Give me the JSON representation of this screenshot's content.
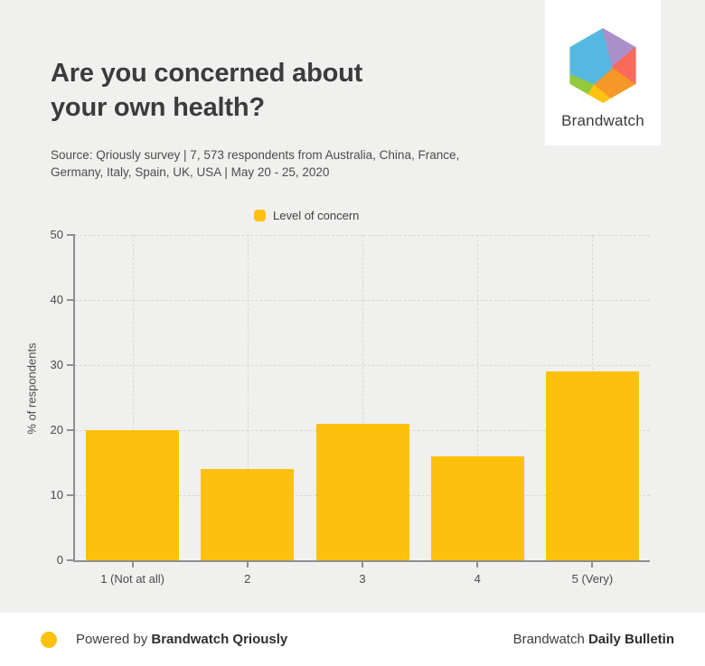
{
  "header": {
    "title_line1": "Are you concerned about",
    "title_line2": "your own health?",
    "source_line1": "Source: Qriously survey | 7, 573 respondents from Australia, China, France,",
    "source_line2": "Germany, Italy, Spain, UK, USA | May 20 - 25, 2020"
  },
  "logo": {
    "brand_name": "Brandwatch",
    "facet_colors": {
      "blue": "#55b8e0",
      "purple": "#ab8fc9",
      "red": "#fa6a5a",
      "orange": "#f79727",
      "yellow": "#fdc30e",
      "green": "#93c93d"
    }
  },
  "legend": {
    "label": "Level of concern",
    "swatch_color": "#fdc10d"
  },
  "chart_data": {
    "type": "bar",
    "title": "Are you concerned about your own health?",
    "series_name": "Level of concern",
    "categories": [
      "1 (Not at all)",
      "2",
      "3",
      "4",
      "5 (Very)"
    ],
    "values": [
      20,
      14,
      21,
      16,
      29
    ],
    "xlabel": "",
    "ylabel": "% of respondents",
    "ylim": [
      0,
      50
    ],
    "yticks": [
      0,
      10,
      20,
      30,
      40,
      50
    ],
    "bar_color": "#fdc10d",
    "grid": "dashed",
    "legend_position": "top"
  },
  "footer": {
    "dot_color": "#fdc10d",
    "powered_by_prefix": "Powered by ",
    "powered_by_brand": "Brandwatch Qriously",
    "right_prefix": "Brandwatch ",
    "right_bold": "Daily Bulletin"
  }
}
